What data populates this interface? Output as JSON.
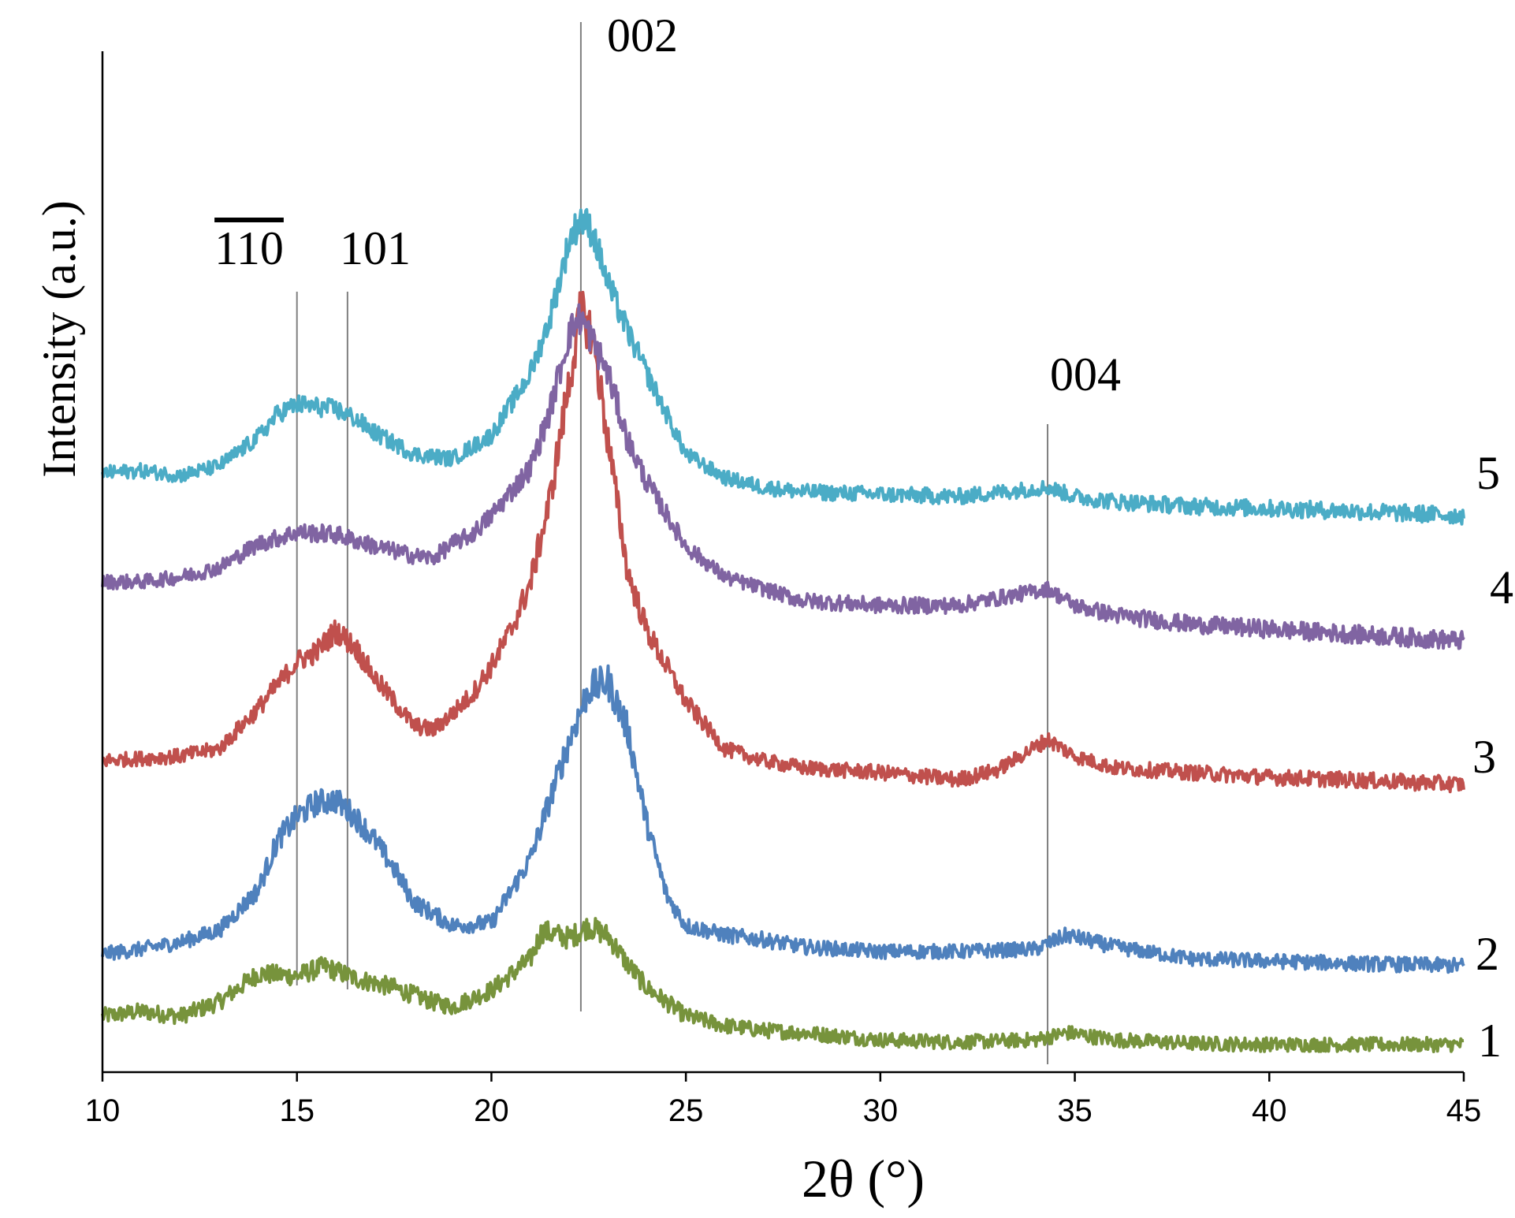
{
  "chart_data": {
    "type": "line",
    "title": "",
    "xlabel": "2θ (°)",
    "ylabel": "Intensity (a.u.)",
    "xlim": [
      10,
      45
    ],
    "xticks": [
      10,
      15,
      20,
      25,
      30,
      35,
      40,
      45
    ],
    "y_ticks_shown": false,
    "grid": false,
    "legend": "none (curves labeled at right end)",
    "reference_lines": [
      {
        "x": 15.0,
        "label": "110",
        "overline": true
      },
      {
        "x": 16.3,
        "label": "101",
        "overline": false
      },
      {
        "x": 22.3,
        "label": "002",
        "overline": false
      },
      {
        "x": 34.3,
        "label": "004",
        "overline": false
      }
    ],
    "series": [
      {
        "name": "1",
        "color": "#77933c",
        "x": [
          10,
          11,
          12,
          13,
          13.5,
          14,
          15,
          15.7,
          16.5,
          17.5,
          18.5,
          19,
          20,
          21,
          21.3,
          22,
          22.5,
          23,
          23.5,
          24,
          25,
          26,
          27,
          28,
          30,
          32,
          34,
          34.8,
          36,
          38,
          40,
          42,
          45
        ],
        "y": [
          12,
          14,
          12,
          18,
          24,
          30,
          29,
          33,
          28,
          24,
          18,
          16,
          23,
          36,
          48,
          45,
          50,
          46,
          34,
          24,
          12,
          8,
          6,
          5,
          2,
          1,
          2,
          5,
          2,
          0.5,
          0,
          0,
          0
        ]
      },
      {
        "name": "2",
        "color": "#4f81bd",
        "x": [
          10,
          11,
          12,
          13,
          14,
          14.5,
          15,
          15.5,
          16,
          16.5,
          17,
          17.5,
          18,
          19,
          20,
          21,
          21.5,
          22,
          22.5,
          23,
          23.5,
          24,
          24.5,
          25,
          26,
          27,
          28,
          30,
          32,
          34,
          34.8,
          36,
          38,
          40,
          42,
          45
        ],
        "y": [
          0,
          2,
          5,
          10,
          27,
          48,
          58,
          64,
          65,
          58,
          48,
          36,
          22,
          12,
          13,
          40,
          65,
          90,
          112,
          115,
          95,
          55,
          25,
          12,
          8,
          6,
          3,
          1,
          1,
          2,
          8,
          3,
          -2,
          -3,
          -4,
          -5
        ]
      },
      {
        "name": "3",
        "color": "#c0504d",
        "x": [
          10,
          11,
          12,
          13,
          14,
          15,
          15.5,
          16,
          16.5,
          17,
          17.5,
          18,
          18.5,
          19,
          19.5,
          20,
          20.5,
          21,
          21.5,
          22,
          22.3,
          22.6,
          23,
          23.5,
          24,
          24.5,
          25,
          26,
          27,
          28,
          30,
          32,
          33,
          34.3,
          35,
          36,
          38,
          40,
          42,
          45
        ],
        "y": [
          0,
          1,
          2,
          5,
          22,
          42,
          46,
          55,
          48,
          35,
          25,
          15,
          13,
          20,
          28,
          40,
          55,
          75,
          110,
          160,
          190,
          180,
          135,
          80,
          55,
          40,
          25,
          5,
          0,
          -3,
          -5,
          -8,
          -4,
          9,
          2,
          -3,
          -5,
          -7,
          -8,
          -10
        ]
      },
      {
        "name": "4",
        "color": "#8064a2",
        "x": [
          10,
          11,
          12,
          13,
          14,
          15,
          16,
          17,
          18,
          18.5,
          19,
          19.5,
          20,
          21,
          21.5,
          22,
          22.3,
          23,
          23.5,
          24,
          25,
          26,
          28,
          30,
          32,
          34.3,
          35,
          36,
          38,
          40,
          42,
          45
        ],
        "y": [
          0,
          0,
          2,
          6,
          16,
          21,
          20,
          15,
          11,
          10,
          16,
          20,
          28,
          48,
          72,
          105,
          112,
          88,
          60,
          42,
          15,
          2,
          -8,
          -10,
          -10,
          -3,
          -10,
          -14,
          -18,
          -20,
          -22,
          -25
        ]
      },
      {
        "name": "5",
        "color": "#4bacc6",
        "x": [
          10,
          11,
          12,
          13,
          14,
          14.5,
          15,
          16,
          16.5,
          17,
          18,
          19,
          20,
          21,
          21.5,
          22,
          22.3,
          22.6,
          23,
          23.5,
          24,
          25,
          26,
          27,
          28,
          30,
          32,
          34.3,
          35,
          36,
          38,
          40,
          42,
          45
        ],
        "y": [
          0,
          1,
          -1,
          3,
          15,
          25,
          29,
          27,
          23,
          17,
          8,
          6,
          16,
          42,
          65,
          98,
          108,
          102,
          80,
          60,
          42,
          8,
          -2,
          -6,
          -8,
          -9,
          -10,
          -6,
          -10,
          -12,
          -14,
          -15,
          -16,
          -18
        ]
      }
    ]
  }
}
